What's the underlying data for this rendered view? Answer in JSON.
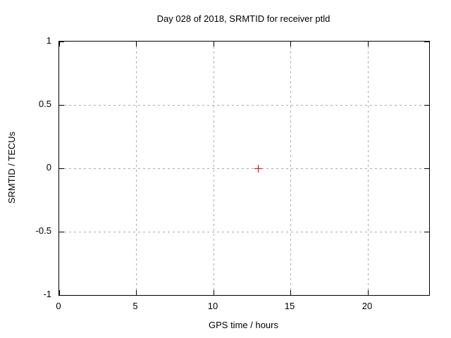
{
  "chart_data": {
    "type": "scatter",
    "title": "Day 028 of 2018, SRMTID for receiver ptld",
    "xlabel": "GPS time / hours",
    "ylabel": "SRMTID / TECUs",
    "xlim": [
      0,
      24
    ],
    "ylim": [
      -1,
      1
    ],
    "x_ticks": [
      0,
      5,
      10,
      15,
      20
    ],
    "y_ticks": [
      -1,
      -0.5,
      0,
      0.5,
      1
    ],
    "grid": true,
    "legend_position": "none",
    "series": [
      {
        "name": "SRMTID",
        "marker": "plus",
        "color": "#e00000",
        "points": [
          {
            "x": 12.9,
            "y": 0.0
          }
        ]
      }
    ]
  },
  "colors": {
    "background": "#ffffff",
    "border": "#000000",
    "grid": "#aaaaaa",
    "text": "#000000",
    "marker": "#e00000"
  }
}
